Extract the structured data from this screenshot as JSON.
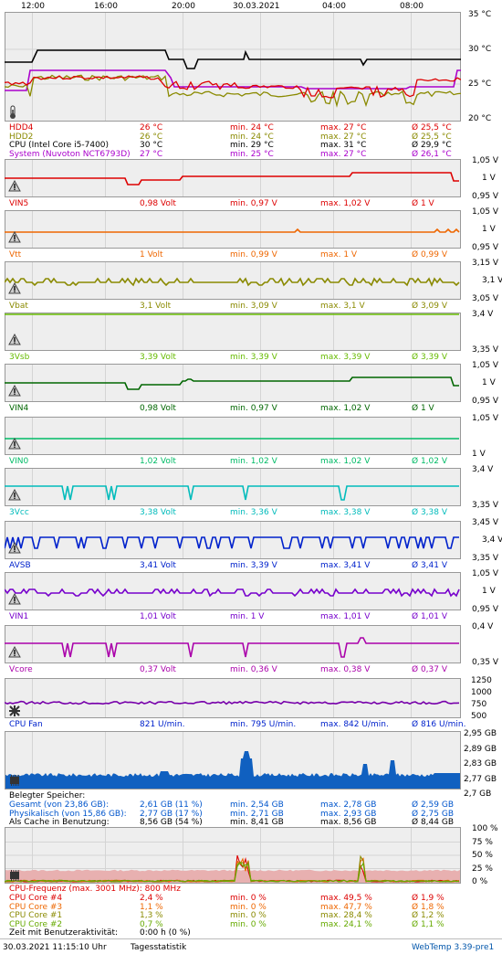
{
  "colors": {
    "panel_bg": "#eeeeee",
    "panel_border": "#999999",
    "grid": "#d4d4d4",
    "app_name": "#0055aa"
  },
  "time_axis": [
    {
      "label": "12:00",
      "pos": 0.06
    },
    {
      "label": "16:00",
      "pos": 0.22
    },
    {
      "label": "20:00",
      "pos": 0.39
    },
    {
      "label": "30.03.2021",
      "pos": 0.56
    },
    {
      "label": "04:00",
      "pos": 0.72
    },
    {
      "label": "08:00",
      "pos": 0.89
    }
  ],
  "temperature": {
    "ticks": [
      {
        "label": "35 °C",
        "value": 35
      },
      {
        "label": "30 °C",
        "value": 30
      },
      {
        "label": "25 °C",
        "value": 25
      },
      {
        "label": "20 °C",
        "value": 20
      }
    ],
    "ymin": 20,
    "ymax": 35,
    "icon": "thermometer-icon",
    "rows": [
      {
        "name": "HDD4",
        "color": "#dd0000",
        "cur": "26 °C",
        "min": "min. 24 °C",
        "max": "max. 27 °C",
        "avg": "Ø 25,5 °C"
      },
      {
        "name": "HDD2",
        "color": "#8a8a00",
        "cur": "26 °C",
        "min": "min. 24 °C",
        "max": "max. 27 °C",
        "avg": "Ø 25,5 °C"
      },
      {
        "name": "CPU (Intel Core i5-7400)",
        "color": "#000000",
        "cur": "30 °C",
        "min": "min. 29 °C",
        "max": "max. 31 °C",
        "avg": "Ø 29,9 °C"
      },
      {
        "name": "System (Nuvoton NCT6793D)",
        "color": "#aa00cc",
        "cur": "27 °C",
        "min": "min. 25 °C",
        "max": "max. 27 °C",
        "avg": "Ø 26,1 °C"
      }
    ]
  },
  "voltages": [
    {
      "name": "VIN5",
      "color": "#dd0000",
      "top": "1,05 V",
      "mid": "1 V",
      "bot": "0,95 V",
      "cur": "0,98 Volt",
      "min": "min. 0,97 V",
      "max": "max. 1,02 V",
      "avg": "Ø 1 V",
      "pattern": "step"
    },
    {
      "name": "Vtt",
      "color": "#ee6600",
      "top": "1,05 V",
      "mid": "1 V",
      "bot": "0,95 V",
      "cur": "1 Volt",
      "min": "min. 0,99 V",
      "max": "max. 1 V",
      "avg": "Ø 0,99 V",
      "pattern": "flat"
    },
    {
      "name": "Vbat",
      "color": "#8a8a00",
      "top": "3,15 V",
      "mid": "3,1 V",
      "bot": "3,05 V",
      "cur": "3,1 Volt",
      "min": "min. 3,09 V",
      "max": "max. 3,1 V",
      "avg": "Ø 3,09 V",
      "pattern": "noisy"
    },
    {
      "name": "3Vsb",
      "color": "#66bb00",
      "top": "3,4 V",
      "mid": "",
      "bot": "3,35 V",
      "cur": "3,39 Volt",
      "min": "min. 3,39 V",
      "max": "max. 3,39 V",
      "avg": "Ø 3,39 V",
      "pattern": "high"
    },
    {
      "name": "VIN4",
      "color": "#006600",
      "top": "1,05 V",
      "mid": "1 V",
      "bot": "0,95 V",
      "cur": "0,98 Volt",
      "min": "min. 0,97 V",
      "max": "max. 1,02 V",
      "avg": "Ø 1 V",
      "pattern": "step"
    },
    {
      "name": "VIN0",
      "color": "#00bb66",
      "top": "1,05 V",
      "mid": "",
      "bot": "1 V",
      "cur": "1,02 Volt",
      "min": "min. 1,02 V",
      "max": "max. 1,02 V",
      "avg": "Ø 1,02 V",
      "pattern": "flat"
    },
    {
      "name": "3Vcc",
      "color": "#00bbbb",
      "top": "3,4 V",
      "mid": "",
      "bot": "3,35 V",
      "cur": "3,38 Volt",
      "min": "min. 3,36 V",
      "max": "max. 3,38 V",
      "avg": "Ø 3,38 V",
      "pattern": "dips"
    },
    {
      "name": "AVSB",
      "color": "#0022cc",
      "top": "3,45 V",
      "mid": "3,4 V",
      "bot": "3,35 V",
      "cur": "3,41 Volt",
      "min": "min. 3,39 V",
      "max": "max. 3,41 V",
      "avg": "Ø 3,41 V",
      "pattern": "manydips"
    },
    {
      "name": "VIN1",
      "color": "#7700cc",
      "top": "1,05 V",
      "mid": "1 V",
      "bot": "0,95 V",
      "cur": "1,01 Volt",
      "min": "min. 1 V",
      "max": "max. 1,01 V",
      "avg": "Ø 1,01 V",
      "pattern": "noisy"
    },
    {
      "name": "Vcore",
      "color": "#aa00aa",
      "top": "0,4 V",
      "mid": "",
      "bot": "0,35 V",
      "cur": "0,37 Volt",
      "min": "min. 0,36 V",
      "max": "max. 0,38 V",
      "avg": "Ø 0,37 V",
      "pattern": "dips"
    }
  ],
  "fan": {
    "name": "CPU Fan",
    "color": "#0022cc",
    "line_color": "#7700aa",
    "ticks": [
      "1250",
      "1000",
      "750",
      "500"
    ],
    "cur": "821 U/min.",
    "min": "min. 795 U/min.",
    "max": "max. 842 U/min.",
    "avg": "Ø 816 U/min.",
    "icon": "fan-icon"
  },
  "memory": {
    "ticks": [
      "2,95 GB",
      "2,89 GB",
      "2,83 GB",
      "2,77 GB",
      "2,7 GB"
    ],
    "title": "Belegter Speicher:",
    "fill_color": "#1060c0",
    "icon": "memory-chip-icon",
    "rows": [
      {
        "name": "Gesamt (von 23,86 GB):",
        "cur": "2,61 GB (11 %)",
        "min": "min. 2,54 GB",
        "max": "max. 2,78 GB",
        "avg": "Ø 2,59 GB"
      },
      {
        "name": "Physikalisch (von 15,86 GB):",
        "cur": "2,77 GB (17 %)",
        "min": "min. 2,71 GB",
        "max": "max. 2,93 GB",
        "avg": "Ø 2,75 GB"
      },
      {
        "name": "Als Cache in Benutzung:",
        "cur": "8,56 GB (54 %)",
        "min": "min. 8,41 GB",
        "max": "max. 8,56 GB",
        "avg": "Ø 8,44 GB"
      }
    ]
  },
  "cpu": {
    "ticks": [
      "100 %",
      "75 %",
      "50 %",
      "25 %",
      "0 %"
    ],
    "freq": "CPU-Frequenz (max. 3001 MHz): 800 MHz",
    "fill_color": "#e8b0b0",
    "icon": "cpu-chip-icon",
    "rows": [
      {
        "name": "CPU Core #4",
        "color": "#dd0000",
        "cur": "2,4 %",
        "min": "min. 0 %",
        "max": "max. 49,5 %",
        "avg": "Ø 1,9 %"
      },
      {
        "name": "CPU Core #3",
        "color": "#ee6600",
        "cur": "1,1 %",
        "min": "min. 0 %",
        "max": "max. 47,7 %",
        "avg": "Ø 1,8 %"
      },
      {
        "name": "CPU Core #1",
        "color": "#8a8a00",
        "cur": "1,3 %",
        "min": "min. 0 %",
        "max": "max. 28,4 %",
        "avg": "Ø 1,2 %"
      },
      {
        "name": "CPU Core #2",
        "color": "#66aa00",
        "cur": "0,7 %",
        "min": "min. 0 %",
        "max": "max. 24,1 %",
        "avg": "Ø 1,1 %"
      }
    ],
    "activity_label": "Zeit mit Benutzeraktivität:",
    "activity_value": "0:00 h (0 %)"
  },
  "footer": {
    "datetime": "30.03.2021 11:15:10 Uhr",
    "tab": "Tagesstatistik",
    "app": "WebTemp 3.39-pre1"
  }
}
